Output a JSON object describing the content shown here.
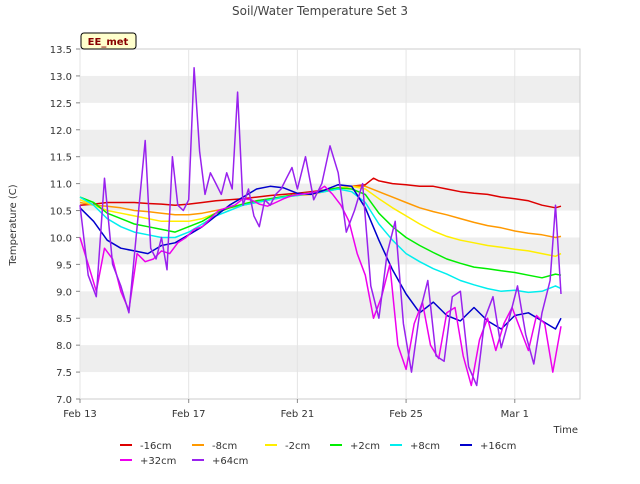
{
  "chart_data": {
    "type": "line",
    "title": "Soil/Water Temperature Set 3",
    "xlabel": "Time",
    "ylabel": "Temperature (C)",
    "site_label": "EE_met",
    "ylim": [
      7.0,
      13.5
    ],
    "xlim_days": [
      0,
      18.4
    ],
    "x_ticks": [
      {
        "label": "Feb 13",
        "day": 0
      },
      {
        "label": "Feb 17",
        "day": 4
      },
      {
        "label": "Feb 21",
        "day": 8
      },
      {
        "label": "Feb 25",
        "day": 12
      },
      {
        "label": "Mar 1",
        "day": 16
      }
    ],
    "y_ticks": [
      "7.0",
      "7.5",
      "8.0",
      "8.5",
      "9.0",
      "9.5",
      "10.0",
      "10.5",
      "11.0",
      "11.5",
      "12.0",
      "12.5",
      "13.0",
      "13.5"
    ],
    "grid": true,
    "legend_position": "bottom",
    "series": [
      {
        "name": "-16cm",
        "color": "#dd0000",
        "x": [
          0,
          0.5,
          1,
          1.5,
          2,
          2.5,
          3,
          3.5,
          4,
          4.5,
          5,
          5.5,
          6,
          6.5,
          7,
          7.5,
          8,
          8.5,
          9,
          9.5,
          10,
          10.5,
          10.8,
          11,
          11.5,
          12,
          12.5,
          13,
          13.5,
          14,
          14.5,
          15,
          15.5,
          16,
          16.5,
          17,
          17.5,
          17.7
        ],
        "y": [
          10.6,
          10.62,
          10.65,
          10.65,
          10.65,
          10.63,
          10.62,
          10.6,
          10.62,
          10.65,
          10.68,
          10.7,
          10.72,
          10.75,
          10.78,
          10.8,
          10.82,
          10.85,
          10.88,
          10.92,
          10.95,
          10.98,
          11.1,
          11.05,
          11.0,
          10.98,
          10.95,
          10.95,
          10.9,
          10.85,
          10.82,
          10.8,
          10.75,
          10.72,
          10.68,
          10.6,
          10.55,
          10.58
        ]
      },
      {
        "name": "-8cm",
        "color": "#ff9900",
        "x": [
          0,
          0.5,
          1,
          1.5,
          2,
          2.5,
          3,
          3.5,
          4,
          4.5,
          5,
          5.5,
          6,
          6.5,
          7,
          7.5,
          8,
          8.5,
          9,
          9.5,
          10,
          10.5,
          11,
          11.5,
          12,
          12.5,
          13,
          13.5,
          14,
          14.5,
          15,
          15.5,
          16,
          16.5,
          17,
          17.5,
          17.7
        ],
        "y": [
          10.65,
          10.6,
          10.58,
          10.55,
          10.5,
          10.48,
          10.45,
          10.42,
          10.42,
          10.45,
          10.5,
          10.55,
          10.6,
          10.65,
          10.7,
          10.75,
          10.78,
          10.8,
          10.85,
          10.9,
          10.95,
          10.95,
          10.85,
          10.75,
          10.65,
          10.55,
          10.48,
          10.42,
          10.35,
          10.28,
          10.22,
          10.18,
          10.12,
          10.08,
          10.05,
          10.0,
          10.02
        ]
      },
      {
        "name": "-2cm",
        "color": "#ffee00",
        "x": [
          0,
          0.5,
          1,
          1.5,
          2,
          2.5,
          3,
          3.5,
          4,
          4.5,
          5,
          5.5,
          6,
          6.5,
          7,
          7.5,
          8,
          8.5,
          9,
          9.5,
          10,
          10.5,
          11,
          11.5,
          12,
          12.5,
          13,
          13.5,
          14,
          14.5,
          15,
          15.5,
          16,
          16.5,
          17,
          17.5,
          17.7
        ],
        "y": [
          10.7,
          10.6,
          10.5,
          10.45,
          10.4,
          10.35,
          10.3,
          10.3,
          10.3,
          10.35,
          10.45,
          10.55,
          10.62,
          10.68,
          10.72,
          10.76,
          10.8,
          10.83,
          10.88,
          10.92,
          10.95,
          10.9,
          10.72,
          10.55,
          10.4,
          10.25,
          10.12,
          10.02,
          9.95,
          9.9,
          9.85,
          9.82,
          9.78,
          9.75,
          9.7,
          9.65,
          9.7
        ]
      },
      {
        "name": "+2cm",
        "color": "#00ee00",
        "x": [
          0,
          0.5,
          1,
          1.5,
          2,
          2.5,
          3,
          3.5,
          4,
          4.5,
          5,
          5.5,
          6,
          6.5,
          7,
          7.5,
          8,
          8.5,
          9,
          9.5,
          10,
          10.5,
          11,
          11.5,
          12,
          12.5,
          13,
          13.5,
          14,
          14.5,
          15,
          15.5,
          16,
          16.5,
          17,
          17.5,
          17.7
        ],
        "y": [
          10.75,
          10.65,
          10.45,
          10.35,
          10.25,
          10.2,
          10.15,
          10.1,
          10.2,
          10.3,
          10.45,
          10.55,
          10.62,
          10.68,
          10.72,
          10.76,
          10.8,
          10.83,
          10.88,
          10.92,
          10.9,
          10.8,
          10.45,
          10.2,
          10.0,
          9.85,
          9.72,
          9.6,
          9.52,
          9.45,
          9.42,
          9.38,
          9.35,
          9.3,
          9.25,
          9.32,
          9.3
        ]
      },
      {
        "name": "+8cm",
        "color": "#00eeee",
        "x": [
          0,
          0.5,
          1,
          1.5,
          2,
          2.5,
          3,
          3.5,
          4,
          4.5,
          5,
          5.5,
          6,
          6.5,
          7,
          7.5,
          8,
          8.5,
          9,
          9.5,
          10,
          10.5,
          11,
          11.5,
          12,
          12.5,
          13,
          13.5,
          14,
          14.5,
          15,
          15.5,
          16,
          16.5,
          17,
          17.5,
          17.7
        ],
        "y": [
          10.75,
          10.6,
          10.35,
          10.2,
          10.1,
          10.05,
          10.0,
          10.0,
          10.1,
          10.25,
          10.4,
          10.5,
          10.6,
          10.65,
          10.7,
          10.75,
          10.78,
          10.82,
          10.85,
          10.9,
          10.85,
          10.65,
          10.25,
          9.95,
          9.7,
          9.55,
          9.42,
          9.32,
          9.2,
          9.12,
          9.05,
          9.0,
          9.02,
          8.98,
          9.0,
          9.1,
          9.05
        ]
      },
      {
        "name": "+16cm",
        "color": "#0000cc",
        "x": [
          0,
          0.5,
          1,
          1.5,
          2,
          2.5,
          3,
          3.5,
          4,
          4.5,
          5,
          5.5,
          6,
          6.5,
          7,
          7.5,
          8,
          8.5,
          9,
          9.5,
          10,
          10.5,
          11,
          11.5,
          12,
          12.5,
          13,
          13.5,
          14,
          14.5,
          15,
          15.5,
          16,
          16.5,
          17,
          17.5,
          17.7
        ],
        "y": [
          10.55,
          10.3,
          9.95,
          9.8,
          9.75,
          9.7,
          9.85,
          9.9,
          10.05,
          10.2,
          10.4,
          10.6,
          10.75,
          10.9,
          10.95,
          10.92,
          10.82,
          10.8,
          10.88,
          10.98,
          10.95,
          10.55,
          9.95,
          9.4,
          8.95,
          8.6,
          8.8,
          8.55,
          8.45,
          8.7,
          8.45,
          8.3,
          8.55,
          8.6,
          8.45,
          8.3,
          8.5
        ]
      },
      {
        "name": "+32cm",
        "color": "#ee00ee",
        "x": [
          0,
          0.3,
          0.6,
          0.9,
          1.2,
          1.5,
          1.8,
          2.1,
          2.4,
          2.7,
          3,
          3.3,
          3.6,
          3.9,
          4.2,
          4.5,
          4.8,
          5.1,
          5.4,
          5.7,
          6,
          6.3,
          6.6,
          6.9,
          7.2,
          7.5,
          7.8,
          8.1,
          8.4,
          8.7,
          9,
          9.3,
          9.6,
          9.9,
          10.2,
          10.5,
          10.8,
          11.1,
          11.4,
          11.7,
          12,
          12.3,
          12.6,
          12.9,
          13.2,
          13.5,
          13.8,
          14.1,
          14.4,
          14.7,
          15,
          15.3,
          15.6,
          15.9,
          16.2,
          16.5,
          16.8,
          17.1,
          17.4,
          17.7
        ],
        "y": [
          10.0,
          9.5,
          9.0,
          9.8,
          9.6,
          9.0,
          8.65,
          9.7,
          9.55,
          9.6,
          9.75,
          9.7,
          9.9,
          10.0,
          10.15,
          10.2,
          10.35,
          10.5,
          10.55,
          10.6,
          10.72,
          10.7,
          10.62,
          10.58,
          10.65,
          10.72,
          10.78,
          10.8,
          10.82,
          10.85,
          10.95,
          10.8,
          10.6,
          10.3,
          9.7,
          9.3,
          8.5,
          8.9,
          9.5,
          8.0,
          7.55,
          8.4,
          8.8,
          8.0,
          7.75,
          8.6,
          8.7,
          7.8,
          7.25,
          8.1,
          8.5,
          7.9,
          8.4,
          8.7,
          8.3,
          7.9,
          8.55,
          8.4,
          7.5,
          8.35
        ]
      },
      {
        "name": "+64cm",
        "color": "#9922ee",
        "x": [
          0,
          0.3,
          0.6,
          0.9,
          1.2,
          1.5,
          1.8,
          2.1,
          2.4,
          2.6,
          2.8,
          3.0,
          3.2,
          3.4,
          3.6,
          3.8,
          4.0,
          4.2,
          4.4,
          4.6,
          4.8,
          5.0,
          5.2,
          5.4,
          5.6,
          5.8,
          6.0,
          6.2,
          6.4,
          6.6,
          6.8,
          7.0,
          7.2,
          7.4,
          7.6,
          7.8,
          8.0,
          8.3,
          8.6,
          8.9,
          9.2,
          9.5,
          9.8,
          10.1,
          10.4,
          10.7,
          11.0,
          11.3,
          11.6,
          11.9,
          12.2,
          12.5,
          12.8,
          13.1,
          13.4,
          13.7,
          14.0,
          14.3,
          14.6,
          14.9,
          15.2,
          15.5,
          15.8,
          16.1,
          16.4,
          16.7,
          17.0,
          17.3,
          17.5,
          17.7
        ],
        "y": [
          10.6,
          9.3,
          8.9,
          11.1,
          9.5,
          9.1,
          8.6,
          10.2,
          11.8,
          9.8,
          9.6,
          10.0,
          9.4,
          11.5,
          10.6,
          10.5,
          10.7,
          13.15,
          11.6,
          10.8,
          11.2,
          11.0,
          10.8,
          11.2,
          10.9,
          12.7,
          10.6,
          10.9,
          10.4,
          10.2,
          10.7,
          10.6,
          10.8,
          10.9,
          11.1,
          11.3,
          10.9,
          11.5,
          10.7,
          11.0,
          11.7,
          11.2,
          10.1,
          10.5,
          11.0,
          9.1,
          8.5,
          9.7,
          10.3,
          8.4,
          7.5,
          8.6,
          9.2,
          7.8,
          7.7,
          8.9,
          9.0,
          7.6,
          7.25,
          8.5,
          8.9,
          7.95,
          8.5,
          9.1,
          8.2,
          7.65,
          8.6,
          9.2,
          10.6,
          8.95
        ]
      }
    ]
  }
}
